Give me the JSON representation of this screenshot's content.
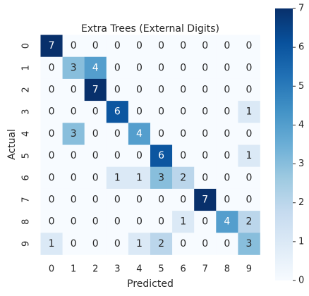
{
  "chart_data": {
    "type": "heatmap",
    "title": "Extra Trees (External Digits)",
    "x_label": "Predicted",
    "y_label": "Actual",
    "x_categories": [
      "0",
      "1",
      "2",
      "3",
      "4",
      "5",
      "6",
      "7",
      "8",
      "9"
    ],
    "y_categories": [
      "0",
      "1",
      "2",
      "3",
      "4",
      "5",
      "6",
      "7",
      "8",
      "9"
    ],
    "values": [
      [
        7,
        0,
        0,
        0,
        0,
        0,
        0,
        0,
        0,
        0
      ],
      [
        0,
        3,
        4,
        0,
        0,
        0,
        0,
        0,
        0,
        0
      ],
      [
        0,
        0,
        7,
        0,
        0,
        0,
        0,
        0,
        0,
        0
      ],
      [
        0,
        0,
        0,
        6,
        0,
        0,
        0,
        0,
        0,
        1
      ],
      [
        0,
        3,
        0,
        0,
        4,
        0,
        0,
        0,
        0,
        0
      ],
      [
        0,
        0,
        0,
        0,
        0,
        6,
        0,
        0,
        0,
        1
      ],
      [
        0,
        0,
        0,
        1,
        1,
        3,
        2,
        0,
        0,
        0
      ],
      [
        0,
        0,
        0,
        0,
        0,
        0,
        0,
        7,
        0,
        0
      ],
      [
        0,
        0,
        0,
        0,
        0,
        0,
        1,
        0,
        4,
        2
      ],
      [
        1,
        0,
        0,
        0,
        1,
        2,
        0,
        0,
        0,
        3
      ]
    ],
    "colormap": "Blues",
    "vlim": [
      0,
      7
    ],
    "colorbar_ticks": [
      0,
      1,
      2,
      3,
      4,
      5,
      6,
      7
    ]
  }
}
